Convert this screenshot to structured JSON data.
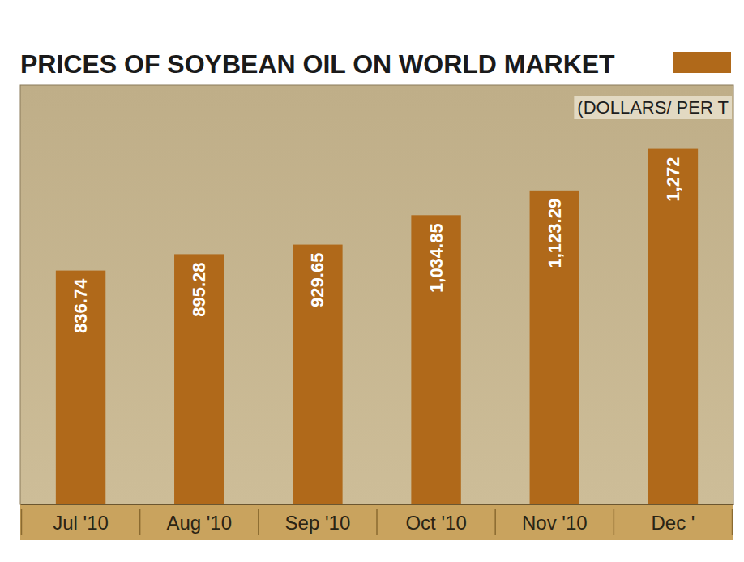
{
  "chart_data": {
    "type": "bar",
    "title": "PRICES OF SOYBEAN OIL ON WORLD MARKET",
    "subtitle": "(DOLLARS/ PER T",
    "categories": [
      "Jul '10",
      "Aug '10",
      "Sep '10",
      "Oct '10",
      "Nov '10",
      "Dec '"
    ],
    "values": [
      836.74,
      895.28,
      929.65,
      1034.85,
      1123.29,
      1272
    ],
    "value_labels": [
      "836.74",
      "895.28",
      "929.65",
      "1,034.85",
      "1,123.29",
      "1,272"
    ],
    "color": "#b0691a",
    "ylim": [
      0,
      1500
    ],
    "data_labels": true,
    "tick_labels": "x",
    "grid": false
  }
}
